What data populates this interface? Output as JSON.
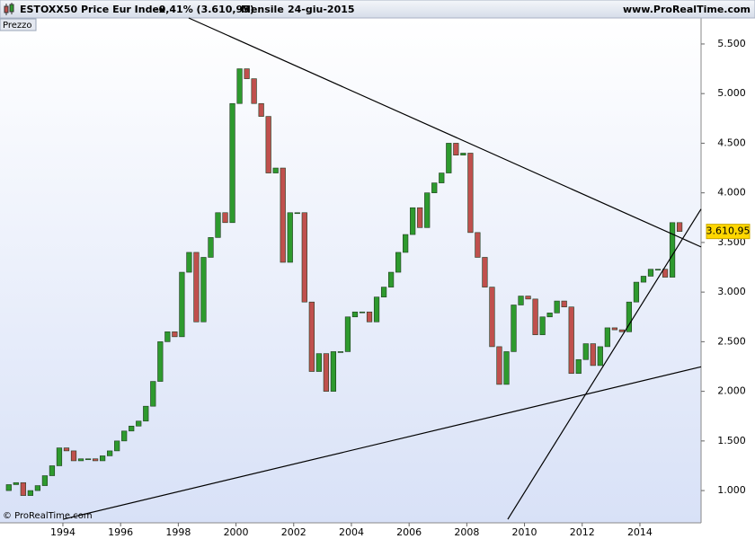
{
  "chart_data": {
    "type": "candlestick",
    "title": "ESTOXX50 Price Eur Index",
    "change": "-0,41% (3.610,95)",
    "period": "Mensile",
    "date": "24-giu-2015",
    "site": "www.ProRealTime.com",
    "panel_label": "Prezzo",
    "copyright": "© ProRealTime.com",
    "last_label": "3.610,95",
    "last_value": 3610.95,
    "up_color": "#2e9a2e",
    "down_color": "#c0504d",
    "xlim": [
      1991.82,
      2016.12
    ],
    "ylim": [
      675,
      5762
    ],
    "xticks": [
      1994,
      1996,
      1998,
      2000,
      2002,
      2004,
      2006,
      2008,
      2010,
      2012,
      2014
    ],
    "yticks": [
      {
        "value": 1000,
        "label": "1.000"
      },
      {
        "value": 1500,
        "label": "1.500"
      },
      {
        "value": 2000,
        "label": "2.000"
      },
      {
        "value": 2500,
        "label": "2.500"
      },
      {
        "value": 3000,
        "label": "3.000"
      },
      {
        "value": 3500,
        "label": "3.500"
      },
      {
        "value": 4000,
        "label": "4.000"
      },
      {
        "value": 4500,
        "label": "4.500"
      },
      {
        "value": 5000,
        "label": "5.000"
      },
      {
        "value": 5500,
        "label": "5.500"
      }
    ],
    "x": [
      1992.125,
      1992.375,
      1992.625,
      1992.875,
      1993.125,
      1993.375,
      1993.625,
      1993.875,
      1994.125,
      1994.375,
      1994.625,
      1994.875,
      1995.125,
      1995.375,
      1995.625,
      1995.875,
      1996.125,
      1996.375,
      1996.625,
      1996.875,
      1997.125,
      1997.375,
      1997.625,
      1997.875,
      1998.125,
      1998.375,
      1998.625,
      1998.875,
      1999.125,
      1999.375,
      1999.625,
      1999.875,
      2000.125,
      2000.375,
      2000.625,
      2000.875,
      2001.125,
      2001.375,
      2001.625,
      2001.875,
      2002.125,
      2002.375,
      2002.625,
      2002.875,
      2003.125,
      2003.375,
      2003.625,
      2003.875,
      2004.125,
      2004.375,
      2004.625,
      2004.875,
      2005.125,
      2005.375,
      2005.625,
      2005.875,
      2006.125,
      2006.375,
      2006.625,
      2006.875,
      2007.125,
      2007.375,
      2007.625,
      2007.875,
      2008.125,
      2008.375,
      2008.625,
      2008.875,
      2009.125,
      2009.375,
      2009.625,
      2009.875,
      2010.125,
      2010.375,
      2010.625,
      2010.875,
      2011.125,
      2011.375,
      2011.625,
      2011.875,
      2012.125,
      2012.375,
      2012.625,
      2012.875,
      2013.125,
      2013.375,
      2013.625,
      2013.875,
      2014.125,
      2014.375,
      2014.625,
      2014.875,
      2015.125,
      2015.375
    ],
    "open": [
      1000,
      1060,
      1080,
      950,
      1000,
      1050,
      1150,
      1250,
      1430,
      1400,
      1300,
      1320,
      1320,
      1300,
      1350,
      1400,
      1500,
      1600,
      1650,
      1700,
      1850,
      2100,
      2500,
      2600,
      2550,
      3200,
      3400,
      2700,
      3350,
      3550,
      3800,
      3700,
      4900,
      5250,
      5150,
      4900,
      4770,
      4200,
      4250,
      3300,
      3800,
      3800,
      2900,
      2200,
      2380,
      2000,
      2400,
      2400,
      2750,
      2800,
      2800,
      2700,
      2950,
      3050,
      3200,
      3400,
      3580,
      3850,
      3650,
      4000,
      4100,
      4200,
      4500,
      4380,
      4400,
      3600,
      3350,
      3050,
      2450,
      2070,
      2400,
      2870,
      2960,
      2930,
      2570,
      2750,
      2790,
      2910,
      2850,
      2180,
      2320,
      2480,
      2260,
      2450,
      2640,
      2620,
      2600,
      2900,
      3100,
      3160,
      3230,
      3230,
      3150,
      3700
    ],
    "close": [
      1060,
      1080,
      950,
      1000,
      1050,
      1150,
      1250,
      1430,
      1400,
      1300,
      1320,
      1320,
      1300,
      1350,
      1400,
      1500,
      1600,
      1650,
      1700,
      1850,
      2100,
      2500,
      2600,
      2550,
      3200,
      3400,
      2700,
      3350,
      3550,
      3800,
      3700,
      4900,
      5250,
      5150,
      4900,
      4770,
      4200,
      4250,
      3300,
      3800,
      3800,
      2900,
      2200,
      2380,
      2000,
      2400,
      2400,
      2750,
      2800,
      2800,
      2700,
      2950,
      3050,
      3200,
      3400,
      3580,
      3850,
      3650,
      4000,
      4100,
      4200,
      4500,
      4380,
      4400,
      3600,
      3350,
      3050,
      2450,
      2070,
      2400,
      2870,
      2960,
      2930,
      2570,
      2750,
      2790,
      2910,
      2850,
      2180,
      2320,
      2480,
      2260,
      2450,
      2640,
      2620,
      2600,
      2900,
      3100,
      3160,
      3230,
      3230,
      3150,
      3700,
      3610.95
    ],
    "trendlines": [
      {
        "x": [
          1998.36,
          2016.12
        ],
        "y": [
          5762,
          3455
        ]
      },
      {
        "x": [
          1994.0,
          2016.12
        ],
        "y": [
          711,
          2247
        ]
      },
      {
        "x": [
          2009.42,
          2016.12
        ],
        "y": [
          711,
          3837
        ]
      }
    ]
  }
}
